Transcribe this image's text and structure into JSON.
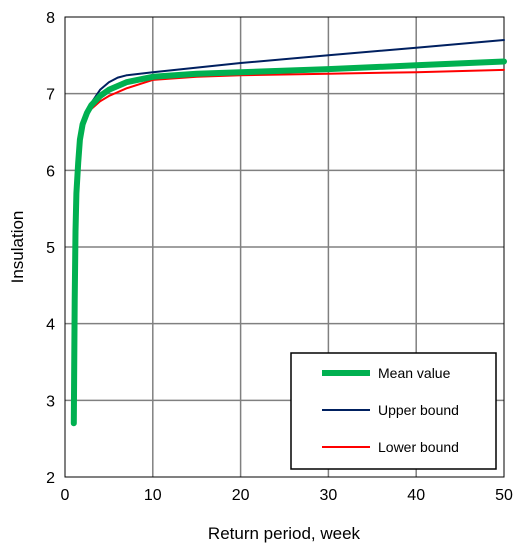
{
  "chart_data": {
    "type": "line",
    "title": "",
    "xlabel": "Return period, week",
    "ylabel": "Insulation",
    "xlim": [
      0,
      50
    ],
    "ylim": [
      2,
      8
    ],
    "xticks": [
      "0",
      "10",
      "20",
      "30",
      "40",
      "50"
    ],
    "yticks": [
      "2",
      "3",
      "4",
      "5",
      "6",
      "7",
      "8"
    ],
    "grid": true,
    "legend_position": "bottom-right",
    "series": [
      {
        "name": "Mean value",
        "color": "#00b050",
        "x": [
          1,
          1.1,
          1.2,
          1.3,
          1.5,
          1.7,
          2,
          2.5,
          3,
          4,
          5,
          7,
          10,
          15,
          20,
          30,
          40,
          50
        ],
        "y": [
          2.7,
          4.3,
          5.2,
          5.7,
          6.1,
          6.4,
          6.6,
          6.75,
          6.85,
          6.97,
          7.05,
          7.15,
          7.22,
          7.26,
          7.28,
          7.32,
          7.37,
          7.42
        ]
      },
      {
        "name": "Upper bound",
        "color": "#002060",
        "x": [
          1,
          1.1,
          1.2,
          1.3,
          1.5,
          1.7,
          2,
          2.5,
          3,
          4,
          5,
          6,
          7,
          10,
          15,
          20,
          30,
          40,
          50
        ],
        "y": [
          2.7,
          4.3,
          5.2,
          5.75,
          6.2,
          6.5,
          6.65,
          6.78,
          6.88,
          7.05,
          7.15,
          7.21,
          7.24,
          7.28,
          7.34,
          7.4,
          7.5,
          7.6,
          7.7
        ]
      },
      {
        "name": "Lower bound",
        "color": "#ff0000",
        "x": [
          1,
          1.1,
          1.2,
          1.3,
          1.5,
          1.7,
          2,
          2.5,
          3,
          4,
          5,
          7,
          10,
          15,
          20,
          30,
          40,
          50
        ],
        "y": [
          2.7,
          4.3,
          5.2,
          5.65,
          6.05,
          6.35,
          6.58,
          6.72,
          6.8,
          6.9,
          6.97,
          7.07,
          7.18,
          7.22,
          7.24,
          7.26,
          7.28,
          7.31
        ]
      }
    ]
  }
}
